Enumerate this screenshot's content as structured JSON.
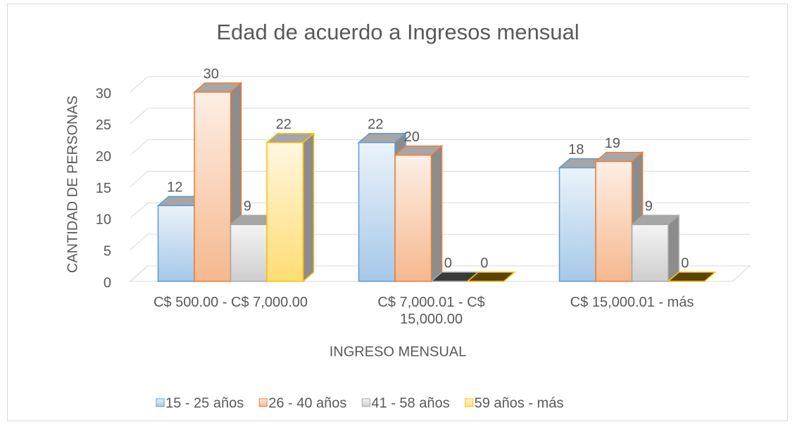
{
  "chart_data": {
    "type": "bar3d",
    "title": "Edad de acuerdo a Ingresos mensual",
    "xlabel": "INGRESO MENSUAL",
    "ylabel": "CANTIDAD DE PERSONAS",
    "categories": [
      "C$ 500.00 - C$ 7,000.00",
      "C$ 7,000.01 - C$ 15,000.00",
      "C$ 15,000.01 - más"
    ],
    "series": [
      {
        "name": "15 - 25 años",
        "color": "#5b9bd5",
        "values": [
          12,
          22,
          18
        ]
      },
      {
        "name": "26 - 40 años",
        "color": "#ed7d31",
        "values": [
          30,
          20,
          19
        ]
      },
      {
        "name": "41 - 58 años",
        "color": "#a5a5a5",
        "values": [
          9,
          0,
          9
        ]
      },
      {
        "name": "59 años - más",
        "color": "#ffc000",
        "values": [
          22,
          0,
          0
        ]
      }
    ],
    "ylim": [
      0,
      30
    ],
    "yticks": [
      0,
      5,
      10,
      15,
      20,
      25,
      30
    ],
    "grid": true,
    "legend": "bottom"
  }
}
